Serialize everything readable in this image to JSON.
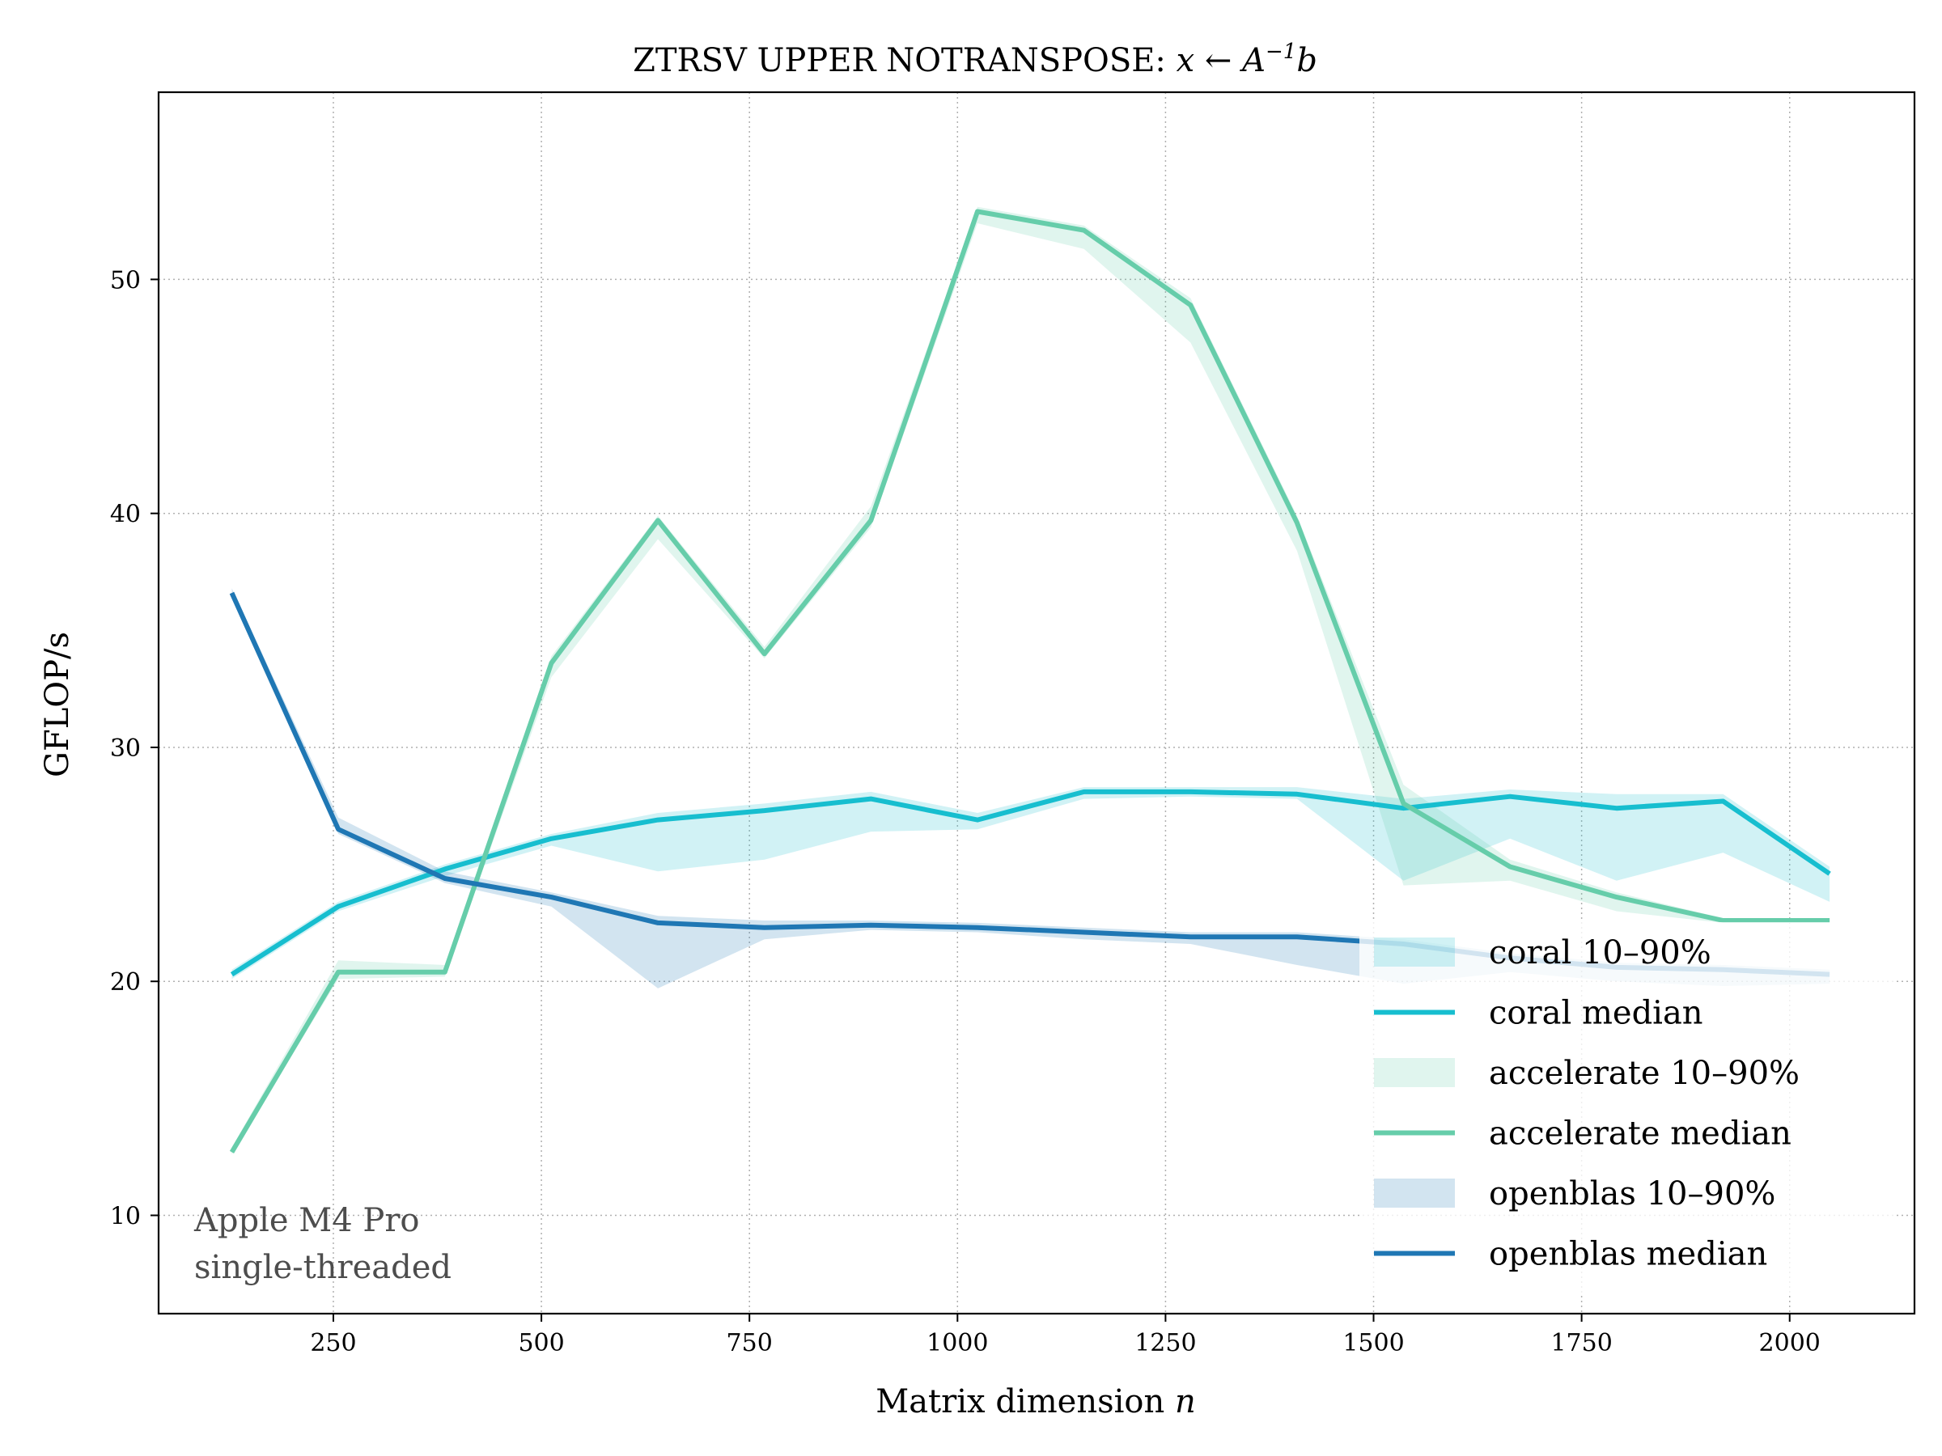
{
  "chart_data": {
    "type": "line",
    "title": "ZTRSV UPPER NOTRANSPOSE: ",
    "title_math": "x ← A",
    "title_math_sup": "−1",
    "title_math_tail": "b",
    "xlabel": "Matrix dimension ",
    "xlabel_var": "n",
    "ylabel": "GFLOP/s",
    "xlim": [
      40,
      2150
    ],
    "ylim": [
      5.8,
      58
    ],
    "xticks": [
      250,
      500,
      750,
      1000,
      1250,
      1500,
      1750,
      2000
    ],
    "yticks": [
      10,
      20,
      30,
      40,
      50
    ],
    "grid": true,
    "legend_position": "lower-right",
    "annotation": [
      "Apple M4 Pro",
      "single-threaded"
    ],
    "x": [
      128,
      256,
      384,
      512,
      640,
      768,
      896,
      1024,
      1152,
      1280,
      1408,
      1536,
      1664,
      1792,
      1920,
      2048
    ],
    "series": [
      {
        "name": "coral",
        "color": "#17becf",
        "median": [
          20.3,
          23.2,
          24.8,
          26.1,
          26.9,
          27.3,
          27.8,
          26.9,
          28.1,
          28.1,
          28.0,
          27.4,
          27.9,
          27.4,
          27.7,
          24.6
        ],
        "p10": [
          20.1,
          23.0,
          24.5,
          25.8,
          24.7,
          25.2,
          26.4,
          26.5,
          27.8,
          27.9,
          27.8,
          24.3,
          26.1,
          24.3,
          25.5,
          23.4
        ],
        "p90": [
          20.5,
          23.4,
          25.0,
          26.3,
          27.2,
          27.6,
          28.1,
          27.2,
          28.3,
          28.3,
          28.3,
          27.8,
          28.2,
          28.0,
          28.0,
          24.9
        ],
        "band_label": "coral 10–90%",
        "median_label": "coral median"
      },
      {
        "name": "accelerate",
        "color": "#66cdaa",
        "median": [
          12.7,
          20.4,
          20.4,
          33.6,
          39.7,
          34.0,
          39.7,
          52.9,
          52.1,
          48.9,
          39.6,
          27.6,
          24.9,
          23.6,
          22.6,
          22.6
        ],
        "p10": [
          12.6,
          20.1,
          20.2,
          33.0,
          38.9,
          33.8,
          39.4,
          52.4,
          51.3,
          47.3,
          38.4,
          24.1,
          24.3,
          23.0,
          22.5,
          22.5
        ],
        "p90": [
          12.9,
          20.9,
          20.7,
          33.9,
          39.9,
          34.3,
          40.3,
          53.1,
          52.3,
          49.2,
          39.9,
          28.4,
          25.2,
          23.8,
          22.7,
          22.7
        ],
        "band_label": "accelerate 10–90%",
        "median_label": "accelerate median"
      },
      {
        "name": "openblas",
        "color": "#1f77b4",
        "median": [
          36.6,
          26.5,
          24.4,
          23.6,
          22.5,
          22.3,
          22.4,
          22.3,
          22.1,
          21.9,
          21.9,
          21.6,
          21.0,
          20.6,
          20.5,
          20.3
        ],
        "p10": [
          36.4,
          26.3,
          24.2,
          23.2,
          19.7,
          21.8,
          22.2,
          22.1,
          21.8,
          21.6,
          20.7,
          19.9,
          20.4,
          20.0,
          19.8,
          19.9
        ],
        "p90": [
          36.8,
          27.0,
          24.7,
          23.8,
          22.8,
          22.6,
          22.6,
          22.5,
          22.3,
          22.1,
          22.1,
          21.8,
          21.2,
          20.8,
          20.7,
          20.5
        ],
        "band_label": "openblas 10–90%",
        "median_label": "openblas median"
      }
    ]
  }
}
